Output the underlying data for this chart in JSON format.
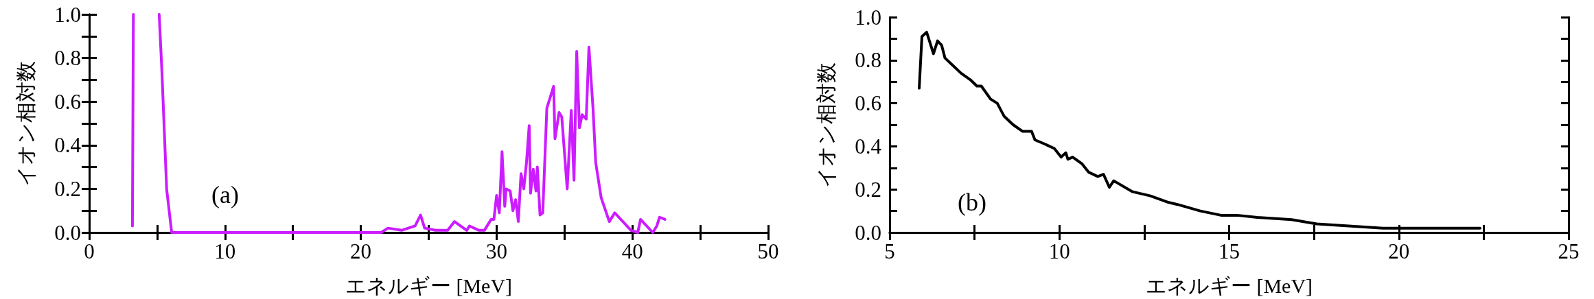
{
  "chart_data": [
    {
      "type": "line",
      "xlabel": "エネルギー [MeV]",
      "ylabel": "イオン相対数",
      "annotations": [
        "(a)"
      ],
      "xlim": [
        0,
        50
      ],
      "xticks": [
        0,
        {
          "value": 5,
          "label": null
        },
        10,
        {
          "value": 15,
          "label": null
        },
        20,
        {
          "value": 25,
          "label": null
        },
        30,
        {
          "value": 35,
          "label": null
        },
        40,
        {
          "value": 45,
          "label": null
        },
        50
      ],
      "ylim": [
        0,
        1
      ],
      "yticks": [
        {
          "value": 0,
          "label": "0.0"
        },
        {
          "value": 0.1,
          "label": null
        },
        0.2,
        {
          "value": 0.3,
          "label": null
        },
        0.4,
        {
          "value": 0.5,
          "label": null
        },
        0.6,
        {
          "value": 0.7,
          "label": null
        },
        0.8,
        {
          "value": 0.9,
          "label": null
        },
        {
          "value": 1,
          "label": "1.0"
        }
      ],
      "grid": false,
      "series": [
        {
          "color": "#cc1cff",
          "x": [
            3.18,
            3.25,
            4.2,
            5.15,
            5.35,
            5.7,
            6.07,
            10,
            15,
            21.5,
            22,
            23,
            24,
            24.4,
            24.7,
            25.5,
            25.8,
            26.4,
            26.9,
            27.8,
            28.0,
            28.7,
            29.1,
            29.6,
            29.8,
            30.0,
            30.2,
            30.4,
            30.6,
            30.7,
            31.0,
            31.2,
            31.4,
            31.6,
            31.8,
            32.0,
            32.2,
            32.4,
            32.5,
            32.7,
            32.9,
            33.0,
            33.2,
            33.4,
            33.7,
            34.2,
            34.3,
            34.6,
            34.8,
            35.2,
            35.5,
            35.7,
            35.9,
            36.1,
            36.3,
            36.6,
            36.8,
            37.1,
            37.3,
            37.7,
            38.3,
            38.7,
            39.9,
            40.4,
            40.6,
            41.5,
            41.8,
            42.0,
            42.4
          ],
          "values": [
            0.03,
            1.0,
            null,
            1.0,
            0.74,
            0.2,
            0.0,
            0.0,
            0.0,
            0.0,
            0.02,
            0.01,
            0.03,
            0.08,
            0.02,
            0.01,
            0.01,
            0.01,
            0.05,
            0.01,
            0.03,
            0.01,
            0.01,
            0.06,
            0.06,
            0.17,
            0.09,
            0.37,
            0.12,
            0.2,
            0.19,
            0.1,
            0.15,
            0.05,
            0.27,
            0.2,
            0.32,
            0.49,
            0.18,
            0.29,
            0.19,
            0.3,
            0.08,
            0.09,
            0.57,
            0.67,
            0.43,
            0.55,
            0.53,
            0.2,
            0.56,
            0.24,
            0.83,
            0.48,
            0.54,
            0.52,
            0.85,
            0.57,
            0.32,
            0.16,
            0.05,
            0.09,
            0.01,
            0.0,
            0.06,
            0.0,
            0.03,
            0.07,
            0.06
          ]
        }
      ]
    },
    {
      "type": "line",
      "xlabel": "エネルギー [MeV]",
      "ylabel": "イオン相対数",
      "annotations": [
        "(b)"
      ],
      "xlim": [
        5,
        25
      ],
      "xticks": [
        5,
        {
          "value": 7.5,
          "label": null
        },
        10,
        {
          "value": 12.5,
          "label": null
        },
        15,
        {
          "value": 17.5,
          "label": null
        },
        20,
        {
          "value": 22.5,
          "label": null
        },
        25
      ],
      "ylim": [
        0,
        1
      ],
      "yticks": [
        {
          "value": 0,
          "label": "0.0"
        },
        {
          "value": 0.1,
          "label": null
        },
        0.2,
        {
          "value": 0.3,
          "label": null
        },
        0.4,
        {
          "value": 0.5,
          "label": null
        },
        0.6,
        {
          "value": 0.7,
          "label": null
        },
        0.8,
        {
          "value": 0.9,
          "label": null
        },
        {
          "value": 1,
          "label": "1.0"
        }
      ],
      "grid": false,
      "series": [
        {
          "color": "#000000",
          "x": [
            5.87,
            5.95,
            6.09,
            6.29,
            6.41,
            6.53,
            6.63,
            6.9,
            7.1,
            7.37,
            7.57,
            7.7,
            7.97,
            8.17,
            8.37,
            8.64,
            8.91,
            9.18,
            9.28,
            9.58,
            9.85,
            10.05,
            10.19,
            10.25,
            10.39,
            10.66,
            10.86,
            11.13,
            11.3,
            11.47,
            11.6,
            12.14,
            12.68,
            13.21,
            13.48,
            14.15,
            14.76,
            15.23,
            15.83,
            16.84,
            17.58,
            18.52,
            19.53,
            20.54,
            21.55,
            22.39
          ],
          "values": [
            0.67,
            0.91,
            0.93,
            0.83,
            0.89,
            0.87,
            0.81,
            0.77,
            0.74,
            0.71,
            0.68,
            0.68,
            0.62,
            0.6,
            0.54,
            0.5,
            0.47,
            0.47,
            0.43,
            0.41,
            0.39,
            0.35,
            0.37,
            0.34,
            0.35,
            0.32,
            0.28,
            0.26,
            0.27,
            0.21,
            0.24,
            0.19,
            0.17,
            0.14,
            0.13,
            0.1,
            0.08,
            0.08,
            0.07,
            0.06,
            0.04,
            0.03,
            0.02,
            0.02,
            0.02,
            0.02
          ]
        }
      ]
    }
  ]
}
